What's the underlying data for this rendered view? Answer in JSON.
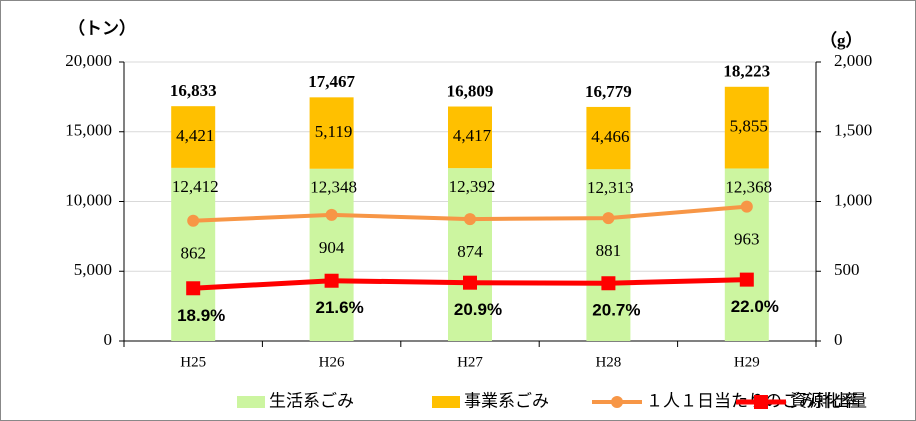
{
  "chart_data": {
    "type": "bar",
    "stacked": true,
    "ylabel": "（トン）",
    "y2label": "（g）",
    "categories": [
      "H25",
      "H26",
      "H27",
      "H28",
      "H29"
    ],
    "series": [
      {
        "name": "生活系ごみ",
        "color": "#ccf5a0",
        "values": [
          12412,
          12348,
          12392,
          12313,
          12368
        ],
        "value_labels": [
          "12,412",
          "12,348",
          "12,392",
          "12,313",
          "12,368"
        ]
      },
      {
        "name": "事業系ごみ",
        "color": "#ffc000",
        "values": [
          4421,
          5119,
          4417,
          4466,
          5855
        ],
        "value_labels": [
          "4,421",
          "5,119",
          "4,417",
          "4,466",
          "5,855"
        ]
      },
      {
        "name": "１人１日当たりのごみ排出量",
        "type": "line",
        "axis": "y2",
        "color": "#f79646",
        "marker": "circle",
        "values": [
          862,
          904,
          874,
          881,
          963
        ]
      },
      {
        "name": "資源化率",
        "type": "line",
        "axis": "y3",
        "color": "#ff0000",
        "marker": "square",
        "values": [
          18.9,
          21.6,
          20.9,
          20.7,
          22.0
        ],
        "value_labels": [
          "18.9%",
          "21.6%",
          "20.9%",
          "20.7%",
          "22.0%"
        ]
      }
    ],
    "totals": [
      16833,
      17467,
      16809,
      16779,
      18223
    ],
    "total_labels": [
      "16,833",
      "17,467",
      "16,809",
      "16,779",
      "18,223"
    ],
    "ylim": [
      0,
      20000
    ],
    "yticks": [
      0,
      {
        "value": 5000,
        "label": "5,000"
      },
      {
        "value": 10000,
        "label": "10,000"
      },
      {
        "value": 15000,
        "label": "15,000"
      },
      {
        "value": 20000,
        "label": "20,000"
      }
    ],
    "y2lim": [
      0,
      2000
    ],
    "y2ticks": [
      0,
      500,
      {
        "value": 1000,
        "label": "1,000"
      },
      {
        "value": 1500,
        "label": "1,500"
      },
      {
        "value": 2000,
        "label": "2,000"
      }
    ],
    "y3lim": [
      0,
      100
    ],
    "grid": true
  }
}
